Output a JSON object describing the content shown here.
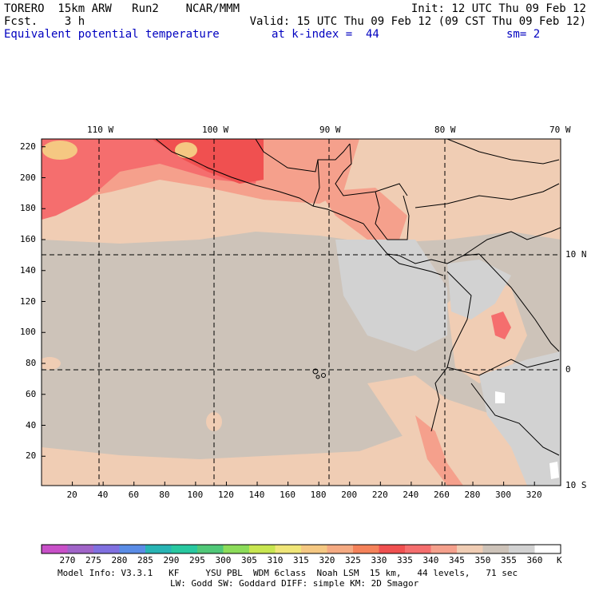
{
  "header": {
    "model": "TORERO  15km ARW   Run2    NCAR/MMM",
    "init": "Init: 12 UTC Thu 09 Feb 12",
    "fcst": "Fcst.    3 h",
    "valid": "Valid: 15 UTC Thu 09 Feb 12 (09 CST Thu 09 Feb 12)",
    "field": "Equivalent potential temperature",
    "kindex": "at k-index =  44",
    "sm": "sm= 2"
  },
  "map": {
    "lon_labels": [
      "110 W",
      "100 W",
      "90 W",
      "80 W",
      "70 W"
    ],
    "lat_labels": [
      "10 N",
      "0",
      "10 S"
    ],
    "y_ticks": [
      "220",
      "200",
      "180",
      "160",
      "140",
      "120",
      "100",
      "80",
      "60",
      "40",
      "20"
    ],
    "x_ticks": [
      "20",
      "40",
      "60",
      "80",
      "100",
      "120",
      "140",
      "160",
      "180",
      "200",
      "220",
      "240",
      "260",
      "280",
      "300",
      "320"
    ]
  },
  "colorbar": {
    "labels": [
      "270",
      "275",
      "280",
      "285",
      "290",
      "295",
      "300",
      "305",
      "310",
      "315",
      "320",
      "325",
      "330",
      "335",
      "340",
      "345",
      "350",
      "355",
      "360"
    ],
    "unit": "K",
    "colors": [
      "#c850c8",
      "#a064c8",
      "#8070e0",
      "#5a8ce6",
      "#28b4b4",
      "#28c8a0",
      "#50c878",
      "#8cdc5a",
      "#c8e650",
      "#f0e678",
      "#f5c882",
      "#f5aa82",
      "#f5825a",
      "#f05050",
      "#f56e6e",
      "#f5a08c",
      "#f0cdb4",
      "#cdc3b9",
      "#d2d2d2",
      "#ffffff"
    ]
  },
  "footer": {
    "line1": "Model Info: V3.3.1   KF     YSU PBL  WDM 6class  Noah LSM  15 km,   44 levels,   71 sec",
    "line2": "LW: Godd SW: Goddard DIFF: simple KM: 2D Smagor"
  },
  "field_colors": {
    "base": "#cdc3b9",
    "warm": "#f0cdb4",
    "warmer": "#f5a08c",
    "hot": "#f56e6e",
    "hottest": "#f05050",
    "peak": "#f5c882",
    "cool": "#d2d2d2",
    "cold": "#ffffff"
  }
}
